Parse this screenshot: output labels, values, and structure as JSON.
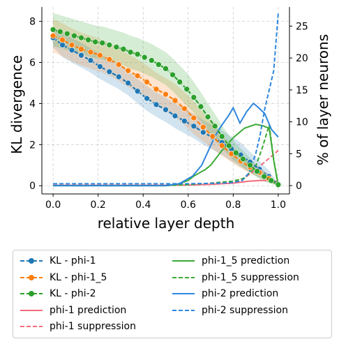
{
  "chart_data": {
    "type": "line",
    "xlabel": "relative layer depth",
    "ylabel_left": "KL divergence",
    "ylabel_right": "% of layer neurons",
    "xlim": [
      -0.05,
      1.05
    ],
    "ylim_left": [
      -0.4,
      8.7
    ],
    "ylim_right": [
      -1.3,
      28.0
    ],
    "x_ticks": [
      "0.0",
      "0.2",
      "0.4",
      "0.6",
      "0.8",
      "1.0"
    ],
    "x_tick_values": [
      0.0,
      0.2,
      0.4,
      0.6,
      0.8,
      1.0
    ],
    "y_left_ticks": [
      "0",
      "2",
      "4",
      "6",
      "8"
    ],
    "y_left_tick_values": [
      0,
      2,
      4,
      6,
      8
    ],
    "y_right_ticks": [
      "0",
      "5",
      "10",
      "15",
      "20",
      "25"
    ],
    "y_right_tick_values": [
      0,
      5,
      10,
      15,
      20,
      25
    ],
    "grid": true,
    "kl_series": [
      {
        "name": "KL - phi-1",
        "color": "#1f77b4",
        "x": [
          0.0,
          0.0417,
          0.0833,
          0.125,
          0.1667,
          0.2083,
          0.25,
          0.2917,
          0.3333,
          0.375,
          0.4167,
          0.4583,
          0.5,
          0.5417,
          0.5833,
          0.625,
          0.6667,
          0.7083,
          0.75,
          0.7917,
          0.8333,
          0.875,
          0.9167,
          0.9583,
          1.0
        ],
        "values": [
          7.2,
          6.85,
          6.6,
          6.35,
          6.1,
          5.8,
          5.55,
          5.3,
          5.0,
          4.6,
          4.25,
          3.95,
          3.7,
          3.4,
          3.15,
          2.9,
          2.6,
          2.35,
          2.1,
          1.8,
          1.5,
          1.15,
          0.8,
          0.45,
          0.05
        ],
        "band": [
          0.45,
          0.6,
          0.6,
          0.6,
          0.6,
          0.6,
          0.6,
          0.6,
          0.6,
          0.6,
          0.6,
          0.6,
          0.6,
          0.6,
          0.6,
          0.6,
          0.6,
          0.6,
          0.6,
          0.6,
          0.6,
          0.5,
          0.4,
          0.3,
          0.05
        ]
      },
      {
        "name": "KL - phi-1_5",
        "color": "#ff7f0e",
        "x": [
          0.0,
          0.0417,
          0.0833,
          0.125,
          0.1667,
          0.2083,
          0.25,
          0.2917,
          0.3333,
          0.375,
          0.4167,
          0.4583,
          0.5,
          0.5417,
          0.5833,
          0.625,
          0.6667,
          0.7083,
          0.75,
          0.7917,
          0.8333,
          0.875,
          0.9167,
          0.9583,
          1.0
        ],
        "values": [
          7.3,
          7.1,
          6.85,
          6.65,
          6.5,
          6.35,
          6.15,
          5.9,
          5.6,
          5.35,
          5.05,
          4.7,
          4.45,
          4.15,
          3.75,
          3.3,
          2.85,
          2.4,
          1.95,
          1.55,
          1.2,
          0.9,
          0.65,
          0.35,
          0.05
        ],
        "band": [
          0.8,
          0.8,
          0.8,
          0.8,
          0.8,
          0.8,
          0.8,
          0.8,
          0.8,
          0.8,
          0.8,
          0.8,
          0.8,
          0.8,
          0.8,
          0.8,
          0.7,
          0.6,
          0.5,
          0.4,
          0.35,
          0.3,
          0.25,
          0.2,
          0.05
        ]
      },
      {
        "name": "KL - phi-2",
        "color": "#2ca02c",
        "x": [
          0.0,
          0.0312,
          0.0625,
          0.0938,
          0.125,
          0.1562,
          0.1875,
          0.2188,
          0.25,
          0.2812,
          0.3125,
          0.3438,
          0.375,
          0.4062,
          0.4375,
          0.4688,
          0.5,
          0.5312,
          0.5625,
          0.5938,
          0.625,
          0.6562,
          0.6875,
          0.7188,
          0.75,
          0.7812,
          0.8125,
          0.8438,
          0.875,
          0.9062,
          0.9375,
          0.9688,
          1.0
        ],
        "values": [
          7.6,
          7.5,
          7.4,
          7.3,
          7.2,
          7.1,
          7.0,
          6.95,
          6.85,
          6.75,
          6.65,
          6.5,
          6.4,
          6.25,
          6.1,
          5.9,
          5.7,
          5.4,
          5.05,
          4.7,
          4.3,
          3.85,
          3.35,
          2.9,
          2.4,
          1.95,
          1.6,
          1.3,
          1.0,
          0.7,
          0.45,
          0.25,
          0.05
        ],
        "band": [
          0.8,
          0.8,
          0.8,
          0.8,
          0.8,
          0.8,
          0.8,
          0.8,
          0.8,
          0.8,
          0.8,
          0.8,
          0.8,
          0.8,
          0.8,
          0.8,
          0.8,
          0.8,
          0.8,
          0.8,
          0.75,
          0.7,
          0.65,
          0.6,
          0.55,
          0.5,
          0.45,
          0.4,
          0.35,
          0.3,
          0.25,
          0.15,
          0.05
        ]
      }
    ],
    "neuron_series": [
      {
        "name": "phi-1 prediction",
        "color": "#f26b7a",
        "dashed": false,
        "x": [
          0.0,
          0.5,
          0.6,
          0.7,
          0.8,
          0.87,
          0.92,
          0.96,
          1.0
        ],
        "values": [
          0.05,
          0.05,
          0.1,
          0.2,
          0.4,
          0.7,
          0.8,
          0.8,
          0.6
        ]
      },
      {
        "name": "phi-1 suppression",
        "color": "#f26b7a",
        "dashed": true,
        "x": [
          0.0,
          0.4,
          0.6,
          0.8,
          0.85,
          0.9,
          0.95,
          1.0
        ],
        "values": [
          0.05,
          0.05,
          0.15,
          0.5,
          1.2,
          2.5,
          4.0,
          5.5
        ]
      },
      {
        "name": "phi-1_5 prediction",
        "color": "#3aaa35",
        "dashed": false,
        "x": [
          0.0,
          0.5,
          0.55,
          0.6,
          0.625,
          0.65,
          0.675,
          0.7,
          0.75,
          0.8,
          0.85,
          0.9,
          0.93,
          0.96,
          0.98,
          1.0
        ],
        "values": [
          0.0,
          0.0,
          0.2,
          0.8,
          1.5,
          2.0,
          2.5,
          3.2,
          5.5,
          7.5,
          9.0,
          9.6,
          9.4,
          9.0,
          4.0,
          0.0
        ]
      },
      {
        "name": "phi-1_5 suppression",
        "color": "#3aaa35",
        "dashed": true,
        "x": [
          0.0,
          0.5,
          0.6,
          0.7,
          0.8,
          0.85,
          0.9,
          0.93,
          0.96,
          0.98,
          1.0
        ],
        "values": [
          0.0,
          0.0,
          0.15,
          0.4,
          0.7,
          1.2,
          3.0,
          6.0,
          9.5,
          4.0,
          0.3
        ]
      },
      {
        "name": "phi-2 prediction",
        "color": "#2e86de",
        "dashed": false,
        "x": [
          0.0,
          0.5,
          0.56,
          0.62,
          0.66,
          0.69,
          0.72,
          0.75,
          0.78,
          0.8,
          0.83,
          0.86,
          0.89,
          0.91,
          0.94,
          0.97,
          1.0
        ],
        "values": [
          0.0,
          0.0,
          0.3,
          1.5,
          3.2,
          5.5,
          7.8,
          9.5,
          11.0,
          12.2,
          9.8,
          11.6,
          12.9,
          12.3,
          11.3,
          8.8,
          7.6
        ]
      },
      {
        "name": "phi-2 suppression",
        "color": "#2e86de",
        "dashed": true,
        "x": [
          0.0,
          0.5,
          0.6,
          0.7,
          0.75,
          0.8,
          0.84,
          0.87,
          0.9,
          0.92,
          0.94,
          0.96,
          0.98,
          1.0
        ],
        "values": [
          0.3,
          0.3,
          0.3,
          0.35,
          0.4,
          0.5,
          0.8,
          2.0,
          5.0,
          8.0,
          12.0,
          15.0,
          18.0,
          27.0
        ]
      }
    ],
    "legend_order": [
      "KL - phi-1",
      "KL - phi-1_5",
      "KL - phi-2",
      "phi-1 prediction",
      "phi-1 suppression",
      "phi-1_5 prediction",
      "phi-1_5 suppression",
      "phi-2 prediction",
      "phi-2 suppression"
    ],
    "legend_placement": "below"
  }
}
